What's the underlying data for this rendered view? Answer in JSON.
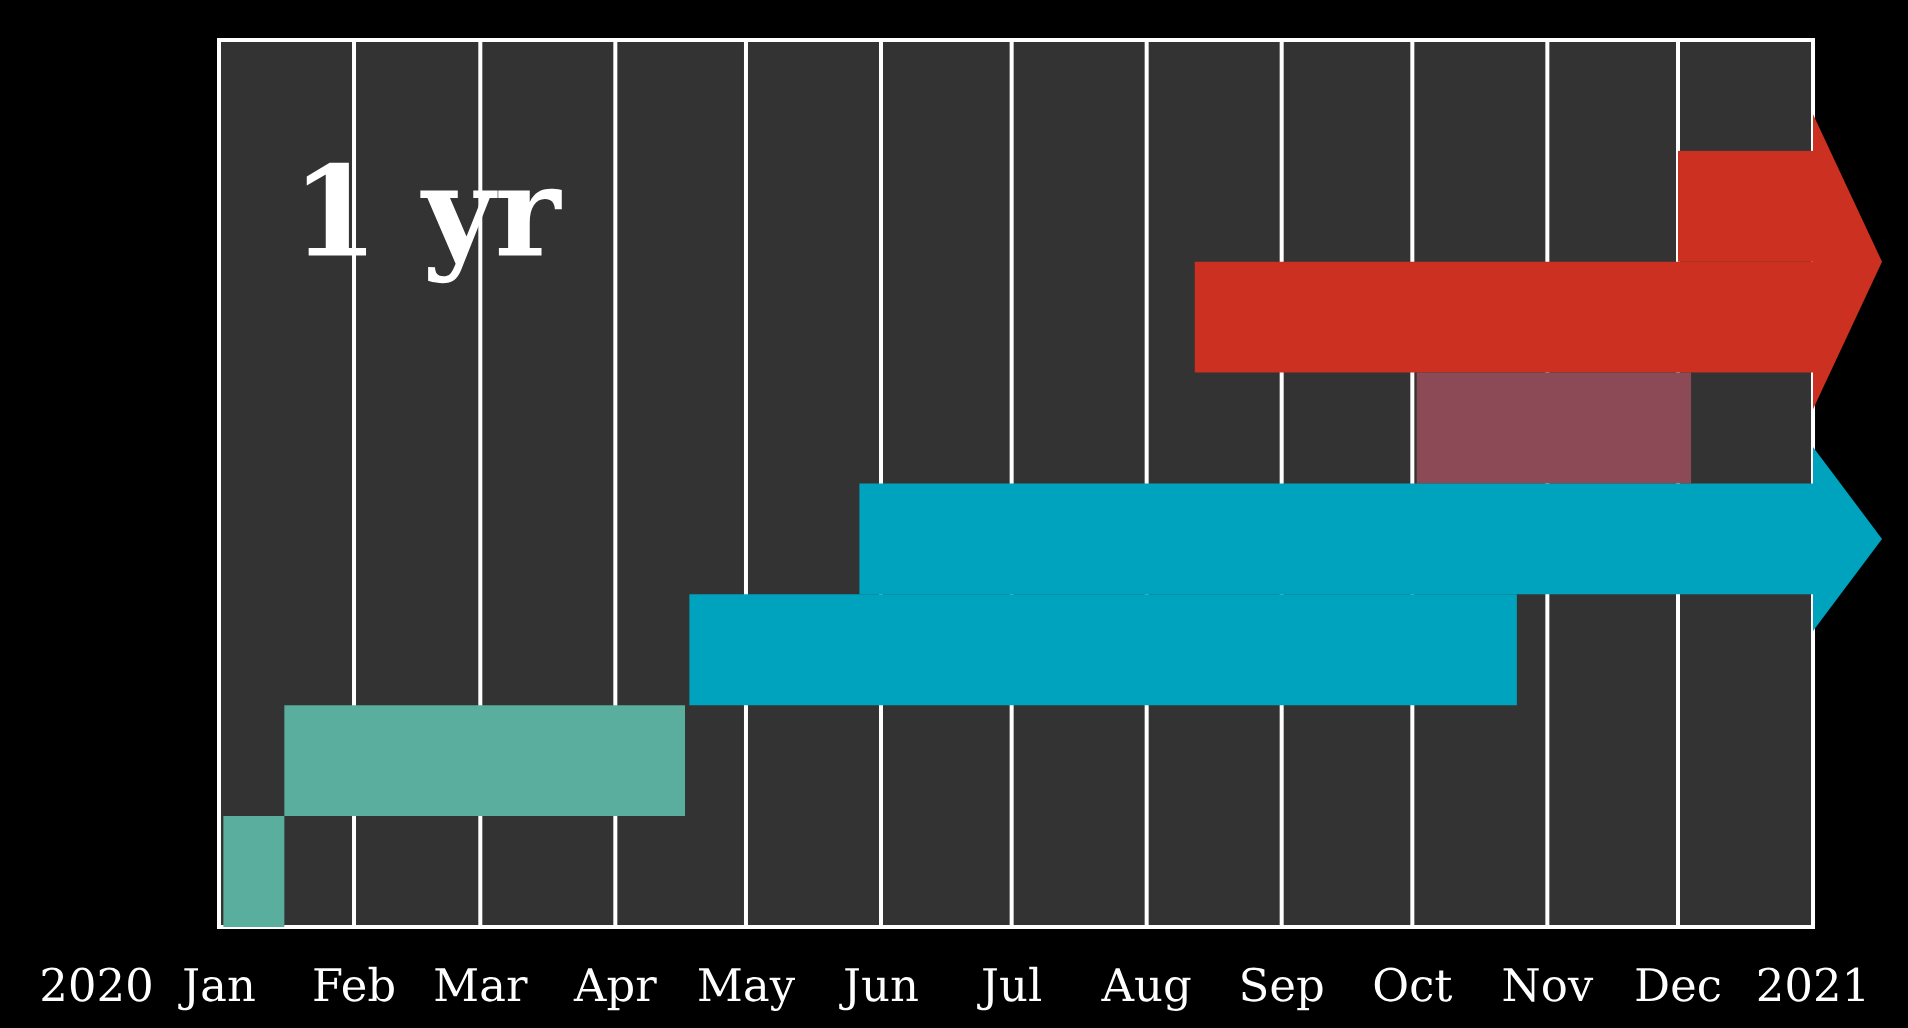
{
  "chart_data": {
    "type": "bar",
    "orientation": "horizontal",
    "title": "1 yr",
    "annotations": [
      "2020"
    ],
    "categories": [
      null,
      null,
      null,
      null,
      null,
      null,
      null,
      null
    ],
    "values": [
      null,
      31,
      142,
      63,
      219,
      190,
      92,
      14
    ],
    "base": [
      null,
      18597,
      18486,
      18537,
      18409,
      18370,
      18277,
      18263
    ],
    "colors": [
      null,
      "#cb3021",
      "#cb3021",
      "#8b4a55",
      "#00a3be",
      "#00a3be",
      "#5aae9e",
      "#5aae9e"
    ],
    "xlim": [
      "2020-01",
      "2021-01"
    ],
    "xticks": [
      {
        "value": "2020-01",
        "label": "Jan"
      },
      {
        "value": "2020-02",
        "label": "Feb"
      },
      {
        "value": "2020-03",
        "label": "Mar"
      },
      {
        "value": "2020-04",
        "label": "Apr"
      },
      {
        "value": "2020-05",
        "label": "May"
      },
      {
        "value": "2020-06",
        "label": "Jun"
      },
      {
        "value": "2020-07",
        "label": "Jul"
      },
      {
        "value": "2020-08",
        "label": "Aug"
      },
      {
        "value": "2020-09",
        "label": "Sep"
      },
      {
        "value": "2020-10",
        "label": "Oct"
      },
      {
        "value": "2020-11",
        "label": "Nov"
      },
      {
        "value": "2020-12",
        "label": "Dec"
      },
      {
        "value": "2021-01",
        "label": "2021"
      }
    ],
    "grid": "x",
    "tick_labels": "x"
  }
}
